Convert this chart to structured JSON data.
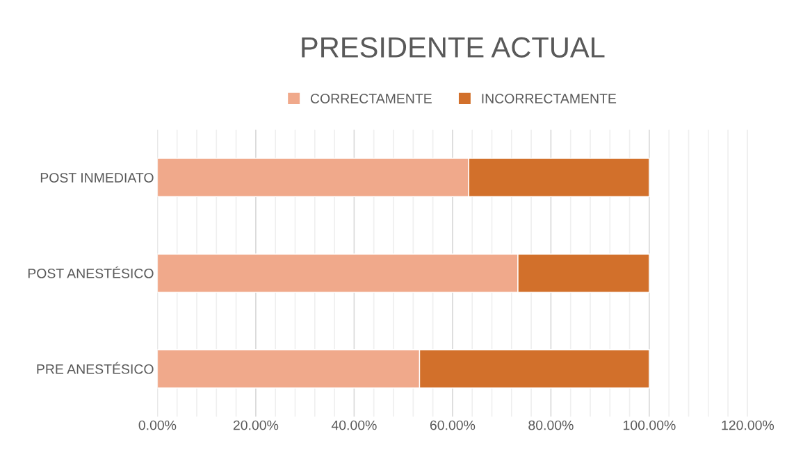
{
  "chart_data": {
    "type": "bar",
    "orientation": "horizontal",
    "stacked": true,
    "title": "PRESIDENTE ACTUAL",
    "categories": [
      "POST INMEDIATO",
      "POST ANESTÉSICO",
      "PRE ANESTÉSICO"
    ],
    "series": [
      {
        "name": "CORRECTAMENTE",
        "color": "#f0a98b",
        "values": [
          63.3,
          73.3,
          53.3
        ]
      },
      {
        "name": "INCORRECTAMENTE",
        "color": "#d2702b",
        "values": [
          36.7,
          26.7,
          46.7
        ]
      }
    ],
    "xlim": [
      0,
      120
    ],
    "xticks": [
      {
        "value": 0,
        "label": "0.00%"
      },
      {
        "value": 4,
        "label": null
      },
      {
        "value": 8,
        "label": null
      },
      {
        "value": 12,
        "label": null
      },
      {
        "value": 16,
        "label": null
      },
      {
        "value": 20,
        "label": "20.00%"
      },
      {
        "value": 24,
        "label": null
      },
      {
        "value": 28,
        "label": null
      },
      {
        "value": 32,
        "label": null
      },
      {
        "value": 36,
        "label": null
      },
      {
        "value": 40,
        "label": "40.00%"
      },
      {
        "value": 44,
        "label": null
      },
      {
        "value": 48,
        "label": null
      },
      {
        "value": 52,
        "label": null
      },
      {
        "value": 56,
        "label": null
      },
      {
        "value": 60,
        "label": "60.00%"
      },
      {
        "value": 64,
        "label": null
      },
      {
        "value": 68,
        "label": null
      },
      {
        "value": 72,
        "label": null
      },
      {
        "value": 76,
        "label": null
      },
      {
        "value": 80,
        "label": "80.00%"
      },
      {
        "value": 84,
        "label": null
      },
      {
        "value": 88,
        "label": null
      },
      {
        "value": 92,
        "label": null
      },
      {
        "value": 96,
        "label": null
      },
      {
        "value": 100,
        "label": "100.00%"
      },
      {
        "value": 104,
        "label": null
      },
      {
        "value": 108,
        "label": null
      },
      {
        "value": 112,
        "label": null
      },
      {
        "value": 116,
        "label": null
      },
      {
        "value": 120,
        "label": "120.00%"
      }
    ],
    "grid": "x",
    "legend": "top"
  }
}
